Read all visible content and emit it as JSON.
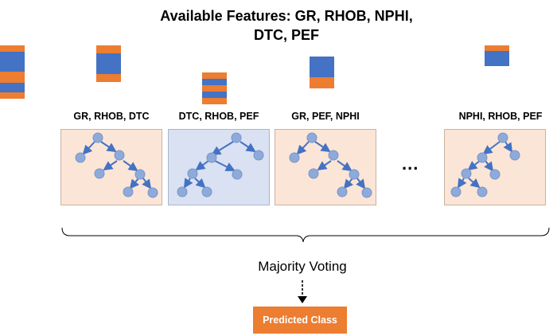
{
  "title": {
    "line1": "Available Features: GR, RHOB, NPHI,",
    "line2": "DTC, PEF"
  },
  "feature_colors": {
    "blue": "#4472c4",
    "orange": "#ed7d31"
  },
  "trees": [
    {
      "label": "GR, RHOB, DTC",
      "fill": "#fbe5d6"
    },
    {
      "label": "DTC, RHOB, PEF",
      "fill": "#d9e1f2"
    },
    {
      "label": "GR, PEF, NPHI",
      "fill": "#fbe5d6"
    },
    {
      "label": "NPHI, RHOB, PEF",
      "fill": "#fbe5d6"
    }
  ],
  "ellipsis": "...",
  "aggregation": {
    "label": "Majority Voting"
  },
  "output": {
    "label": "Predicted Class",
    "color": "#ed7d31"
  }
}
